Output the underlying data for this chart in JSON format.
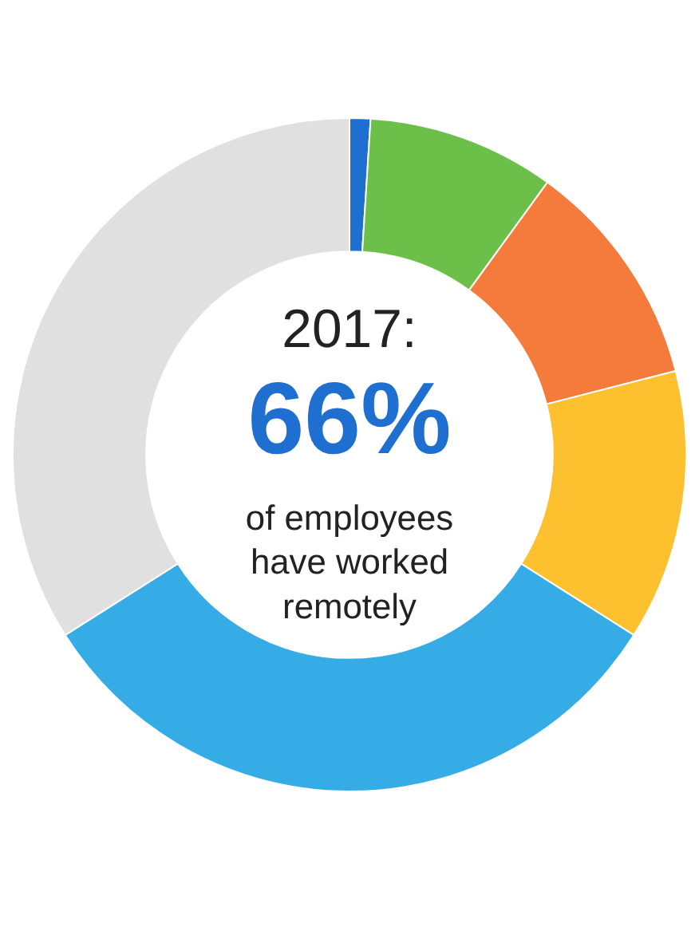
{
  "chart_data": {
    "type": "donut",
    "categories": [
      null,
      null,
      null,
      null,
      null,
      null
    ],
    "values": [
      1,
      9,
      11,
      13,
      32,
      34
    ],
    "colors": [
      "#1f6fd0",
      "#6cc04a",
      "#f47b3c",
      "#fdc02f",
      "#35ace6",
      "#e0e0e0"
    ],
    "annotations": [
      "2017:",
      "66%",
      "of employees",
      "have worked",
      "remotely"
    ],
    "legend": false
  }
}
